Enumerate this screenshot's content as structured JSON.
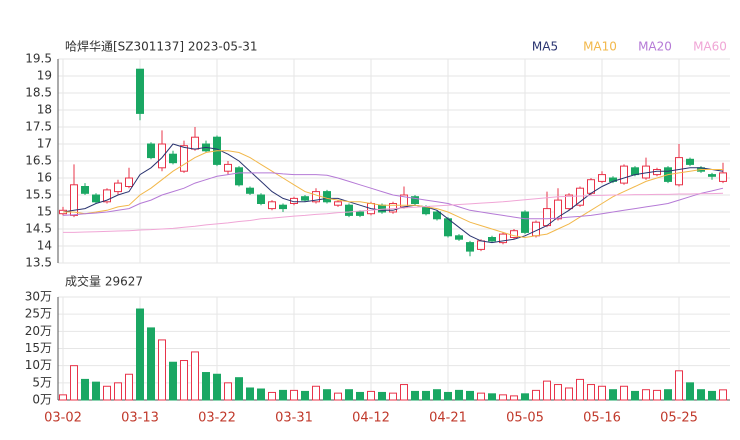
{
  "chart_data": [
    {
      "type": "candlestick",
      "title": "哈焊华通[SZ301137] 2023-05-31",
      "open": [
        14.95,
        14.9,
        15.75,
        15.5,
        15.3,
        15.6,
        15.75,
        19.2,
        17.0,
        16.3,
        16.7,
        16.2,
        16.85,
        17.0,
        17.2,
        16.2,
        16.3,
        15.7,
        15.5,
        15.1,
        15.2,
        15.25,
        15.45,
        15.3,
        15.6,
        15.2,
        15.2,
        15.0,
        14.95,
        15.2,
        15.0,
        15.15,
        15.45,
        15.15,
        15.0,
        14.8,
        14.3,
        14.1,
        13.9,
        14.25,
        14.1,
        14.25,
        15.0,
        14.3,
        14.6,
        14.8,
        15.1,
        15.2,
        15.55,
        15.9,
        16.0,
        15.85,
        16.3,
        16.0,
        16.1,
        16.3,
        15.8,
        16.55,
        16.3,
        16.1,
        15.9
      ],
      "close": [
        15.05,
        15.8,
        15.55,
        15.3,
        15.65,
        15.85,
        16.0,
        17.9,
        16.6,
        17.0,
        16.45,
        16.95,
        17.2,
        16.8,
        16.4,
        16.4,
        15.8,
        15.55,
        15.25,
        15.3,
        15.1,
        15.4,
        15.35,
        15.6,
        15.3,
        15.3,
        14.9,
        14.9,
        15.25,
        15.0,
        15.25,
        15.5,
        15.25,
        14.95,
        14.8,
        14.3,
        14.2,
        13.85,
        14.15,
        14.15,
        14.35,
        14.45,
        14.4,
        14.7,
        15.1,
        15.35,
        15.5,
        15.7,
        15.95,
        16.1,
        15.9,
        16.35,
        16.1,
        16.35,
        16.25,
        15.9,
        16.6,
        16.4,
        16.2,
        16.05,
        16.15
      ],
      "high": [
        15.15,
        16.4,
        15.85,
        15.55,
        15.7,
        15.95,
        16.3,
        19.2,
        17.05,
        17.4,
        16.8,
        17.1,
        17.5,
        17.1,
        17.25,
        16.5,
        16.35,
        15.75,
        15.55,
        15.35,
        15.25,
        15.45,
        15.5,
        15.7,
        15.65,
        15.35,
        15.25,
        15.05,
        15.3,
        15.25,
        15.3,
        15.75,
        15.5,
        15.2,
        15.05,
        14.85,
        14.35,
        14.15,
        14.2,
        14.3,
        14.4,
        14.5,
        15.05,
        14.75,
        15.6,
        15.7,
        15.55,
        15.75,
        16.0,
        16.2,
        16.05,
        16.4,
        16.35,
        16.6,
        16.3,
        16.35,
        17.0,
        16.6,
        16.35,
        16.15,
        16.45
      ],
      "low": [
        14.9,
        14.85,
        15.5,
        15.25,
        15.25,
        15.5,
        15.7,
        17.7,
        16.55,
        16.2,
        16.4,
        16.15,
        16.8,
        16.75,
        16.35,
        16.1,
        15.75,
        15.5,
        15.2,
        15.05,
        15.0,
        15.2,
        15.3,
        15.25,
        15.25,
        15.15,
        14.85,
        14.85,
        14.9,
        14.95,
        14.95,
        15.1,
        15.2,
        14.9,
        14.75,
        14.25,
        14.15,
        13.7,
        13.85,
        14.1,
        14.05,
        14.2,
        14.35,
        14.25,
        14.55,
        14.75,
        15.05,
        15.15,
        15.5,
        15.85,
        15.85,
        15.8,
        16.05,
        15.95,
        16.05,
        15.85,
        15.75,
        16.35,
        16.15,
        15.95,
        15.85
      ],
      "up_color": "#e8344a",
      "down_color": "#1aa763",
      "series": [
        {
          "name": "MA5",
          "color": "#2a3470",
          "values": [
            15.0,
            15.05,
            15.1,
            15.25,
            15.35,
            15.5,
            15.6,
            16.1,
            16.3,
            16.6,
            17.0,
            16.9,
            16.85,
            16.9,
            16.85,
            16.7,
            16.5,
            16.2,
            15.9,
            15.6,
            15.4,
            15.3,
            15.3,
            15.35,
            15.4,
            15.4,
            15.3,
            15.2,
            15.1,
            15.05,
            15.05,
            15.15,
            15.2,
            15.15,
            15.05,
            14.8,
            14.55,
            14.3,
            14.15,
            14.1,
            14.15,
            14.2,
            14.3,
            14.45,
            14.6,
            14.85,
            15.05,
            15.3,
            15.55,
            15.75,
            15.9,
            16.0,
            16.1,
            16.15,
            16.2,
            16.2,
            16.25,
            16.3,
            16.3,
            16.25,
            16.2
          ]
        },
        {
          "name": "MA10",
          "color": "#f2b84b",
          "values": [
            15.0,
            15.0,
            14.95,
            15.0,
            15.05,
            15.15,
            15.2,
            15.5,
            15.7,
            15.95,
            16.2,
            16.4,
            16.6,
            16.75,
            16.8,
            16.8,
            16.75,
            16.6,
            16.4,
            16.2,
            16.0,
            15.8,
            15.6,
            15.5,
            15.4,
            15.35,
            15.3,
            15.3,
            15.25,
            15.2,
            15.2,
            15.2,
            15.2,
            15.15,
            15.1,
            15.0,
            14.85,
            14.7,
            14.6,
            14.5,
            14.4,
            14.3,
            14.25,
            14.3,
            14.35,
            14.5,
            14.65,
            14.85,
            15.05,
            15.25,
            15.45,
            15.6,
            15.75,
            15.9,
            16.0,
            16.1,
            16.15,
            16.2,
            16.25,
            16.25,
            16.25
          ]
        },
        {
          "name": "MA20",
          "color": "#b57ad6",
          "values": [
            14.9,
            14.92,
            14.95,
            14.97,
            15.0,
            15.05,
            15.1,
            15.25,
            15.35,
            15.5,
            15.6,
            15.7,
            15.85,
            15.95,
            16.05,
            16.1,
            16.15,
            16.15,
            16.15,
            16.15,
            16.12,
            16.1,
            16.1,
            16.1,
            16.08,
            16.0,
            15.9,
            15.8,
            15.7,
            15.6,
            15.5,
            15.45,
            15.4,
            15.35,
            15.3,
            15.25,
            15.15,
            15.05,
            15.0,
            14.95,
            14.9,
            14.85,
            14.8,
            14.8,
            14.8,
            14.82,
            14.85,
            14.87,
            14.9,
            14.95,
            15.0,
            15.05,
            15.1,
            15.15,
            15.2,
            15.25,
            15.35,
            15.45,
            15.55,
            15.62,
            15.7
          ]
        },
        {
          "name": "MA60",
          "color": "#f0a6d6",
          "values": [
            14.4,
            14.4,
            14.41,
            14.42,
            14.43,
            14.44,
            14.45,
            14.47,
            14.48,
            14.5,
            14.52,
            14.55,
            14.58,
            14.62,
            14.65,
            14.68,
            14.72,
            14.75,
            14.8,
            14.82,
            14.85,
            14.88,
            14.9,
            14.93,
            14.95,
            14.98,
            15.0,
            15.03,
            15.05,
            15.08,
            15.1,
            15.12,
            15.14,
            15.16,
            15.18,
            15.2,
            15.22,
            15.24,
            15.26,
            15.28,
            15.3,
            15.33,
            15.36,
            15.39,
            15.42,
            15.45,
            15.46,
            15.47,
            15.48,
            15.49,
            15.5,
            15.5,
            15.51,
            15.51,
            15.52,
            15.52,
            15.53,
            15.53,
            15.54,
            15.54,
            15.55
          ]
        }
      ],
      "ylim": [
        13.5,
        19.5
      ],
      "yticks": [
        13.5,
        14,
        14.5,
        15,
        15.5,
        16,
        16.5,
        17,
        17.5,
        18,
        18.5,
        19,
        19.5
      ],
      "grid": true
    },
    {
      "type": "bar",
      "title": "成交量 29627",
      "categories": [
        "03-02",
        null,
        null,
        null,
        null,
        null,
        null,
        "03-13",
        null,
        null,
        null,
        null,
        null,
        null,
        "03-22",
        null,
        null,
        null,
        null,
        null,
        null,
        "03-31",
        null,
        null,
        null,
        null,
        null,
        null,
        "04-12",
        null,
        null,
        null,
        null,
        null,
        null,
        "04-21",
        null,
        null,
        null,
        null,
        null,
        null,
        "05-05",
        null,
        null,
        null,
        null,
        null,
        null,
        "05-16",
        null,
        null,
        null,
        null,
        null,
        null,
        "05-25",
        null,
        null,
        null,
        null
      ],
      "values": [
        1.5,
        10,
        6,
        5.2,
        4,
        5,
        7.5,
        26.5,
        21,
        17.5,
        11,
        11.5,
        14,
        8,
        7.5,
        5,
        6.5,
        3.5,
        3.2,
        2.2,
        2.8,
        2.8,
        2.5,
        4,
        3,
        2,
        3,
        2.2,
        2.5,
        2.2,
        2,
        4.5,
        2.5,
        2.5,
        3,
        2.2,
        2.8,
        2.5,
        2,
        1.8,
        1.5,
        1.2,
        1.8,
        2.8,
        5.5,
        4.5,
        3.5,
        6,
        4.5,
        4,
        3,
        4,
        2.5,
        3,
        2.8,
        3,
        8.5,
        5,
        3,
        2.5,
        2.96
      ],
      "ylim": [
        0,
        30
      ],
      "yticks": [
        {
          "value": 0,
          "label": "0万"
        },
        {
          "value": 5,
          "label": "5万"
        },
        {
          "value": 10,
          "label": "10万"
        },
        {
          "value": 15,
          "label": "15万"
        },
        {
          "value": 20,
          "label": "20万"
        },
        {
          "value": 25,
          "label": "25万"
        },
        {
          "value": 30,
          "label": "30万"
        }
      ],
      "grid": true
    }
  ]
}
